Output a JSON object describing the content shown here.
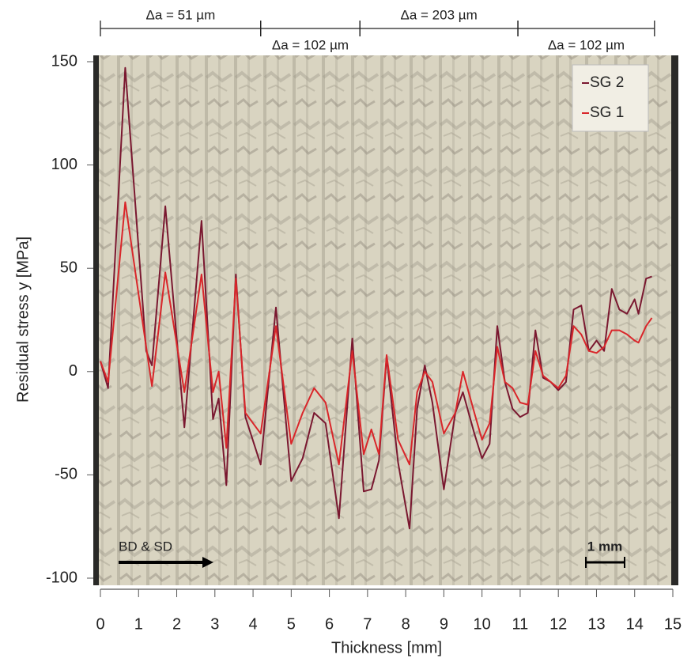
{
  "chart_data": {
    "type": "line",
    "xlabel": "Thickness [mm]",
    "ylabel": "Residual stress y [MPa]",
    "xlim": [
      0,
      15
    ],
    "ylim": [
      -100,
      150
    ],
    "xticks": [
      0,
      1,
      2,
      3,
      4,
      5,
      6,
      7,
      8,
      9,
      10,
      11,
      12,
      13,
      14,
      15
    ],
    "yticks": [
      -100,
      -50,
      0,
      50,
      100,
      150
    ],
    "legend": "upper right",
    "x": [
      0,
      0.2,
      0.65,
      1.2,
      1.35,
      1.7,
      2.2,
      2.65,
      2.95,
      3.1,
      3.3,
      3.55,
      3.8,
      4.2,
      4.6,
      5.0,
      5.3,
      5.6,
      5.9,
      6.25,
      6.6,
      6.9,
      7.1,
      7.3,
      7.5,
      7.8,
      8.1,
      8.3,
      8.5,
      8.7,
      9.0,
      9.3,
      9.5,
      9.8,
      10.0,
      10.2,
      10.4,
      10.6,
      10.8,
      11.0,
      11.2,
      11.4,
      11.6,
      11.8,
      12.0,
      12.2,
      12.4,
      12.6,
      12.8,
      13.0,
      13.2,
      13.4,
      13.6,
      13.8,
      14.0,
      14.1,
      14.3,
      14.45
    ],
    "series": [
      {
        "name": "SG 2",
        "color": "#7a1830",
        "values": [
          5,
          -8,
          147,
          10,
          3,
          80,
          -27,
          73,
          -23,
          -13,
          -55,
          47,
          -22,
          -45,
          31,
          -53,
          -42,
          -20,
          -25,
          -71,
          16,
          -58,
          -57,
          -43,
          7,
          -44,
          -76,
          -18,
          3,
          -15,
          -57,
          -20,
          -10,
          -30,
          -42,
          -35,
          22,
          -5,
          -18,
          -22,
          -20,
          20,
          -3,
          -5,
          -9,
          -5,
          30,
          32,
          10,
          15,
          10,
          40,
          30,
          28,
          35,
          28,
          45,
          46
        ]
      },
      {
        "name": "SG 1",
        "color": "#d9262a",
        "values": [
          5,
          -5,
          82,
          12,
          -7,
          48,
          -10,
          47,
          -10,
          0,
          -37,
          45,
          -20,
          -30,
          22,
          -35,
          -20,
          -8,
          -15,
          -45,
          10,
          -40,
          -28,
          -40,
          8,
          -33,
          -45,
          -10,
          0,
          -5,
          -30,
          -20,
          0,
          -20,
          -33,
          -25,
          12,
          -5,
          -8,
          -15,
          -16,
          10,
          -2,
          -5,
          -8,
          -2,
          22,
          18,
          10,
          9,
          12,
          20,
          20,
          18,
          15,
          14,
          22,
          26
        ]
      }
    ],
    "annotations": [
      {
        "text": "Δa = 51 µm",
        "x": [
          0,
          4.2
        ],
        "position": "above"
      },
      {
        "text": "Δa = 102 µm",
        "x": [
          4.2,
          6.8
        ],
        "position": "below"
      },
      {
        "text": "Δa = 203 µm",
        "x": [
          6.8,
          10.94
        ],
        "position": "above"
      },
      {
        "text": "Δa = 102 µm",
        "x": [
          10.94,
          14.52
        ],
        "position": "below"
      }
    ],
    "direction_label": "BD & SD",
    "scale_bar_label": "1 mm"
  }
}
